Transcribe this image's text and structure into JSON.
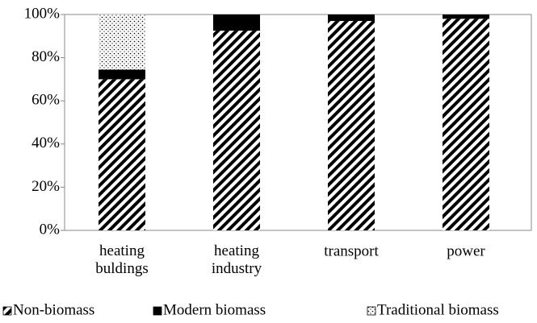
{
  "chart_data": {
    "type": "stacked_bar",
    "categories": [
      "heating buldings",
      "heating industry",
      "transport",
      "power"
    ],
    "series": [
      {
        "name": "Non-biomass",
        "color": "#000000",
        "pattern": "hatch",
        "values": [
          70,
          92.5,
          97,
          98
        ]
      },
      {
        "name": "Modern biomass",
        "color": "#000000",
        "pattern": "solid",
        "values": [
          4.5,
          7.5,
          3,
          2
        ]
      },
      {
        "name": "Traditional biomass",
        "color": "#000000",
        "pattern": "dots",
        "values": [
          25.5,
          0,
          0,
          0
        ]
      }
    ],
    "ylim": [
      0,
      100
    ],
    "yticks": [
      {
        "value": 0,
        "label": "0%"
      },
      {
        "value": 20,
        "label": "20%"
      },
      {
        "value": 40,
        "label": "40%"
      },
      {
        "value": 60,
        "label": "60%"
      },
      {
        "value": 80,
        "label": "80%"
      },
      {
        "value": 100,
        "label": "100%"
      }
    ],
    "grid": false,
    "legend": "bottom"
  }
}
